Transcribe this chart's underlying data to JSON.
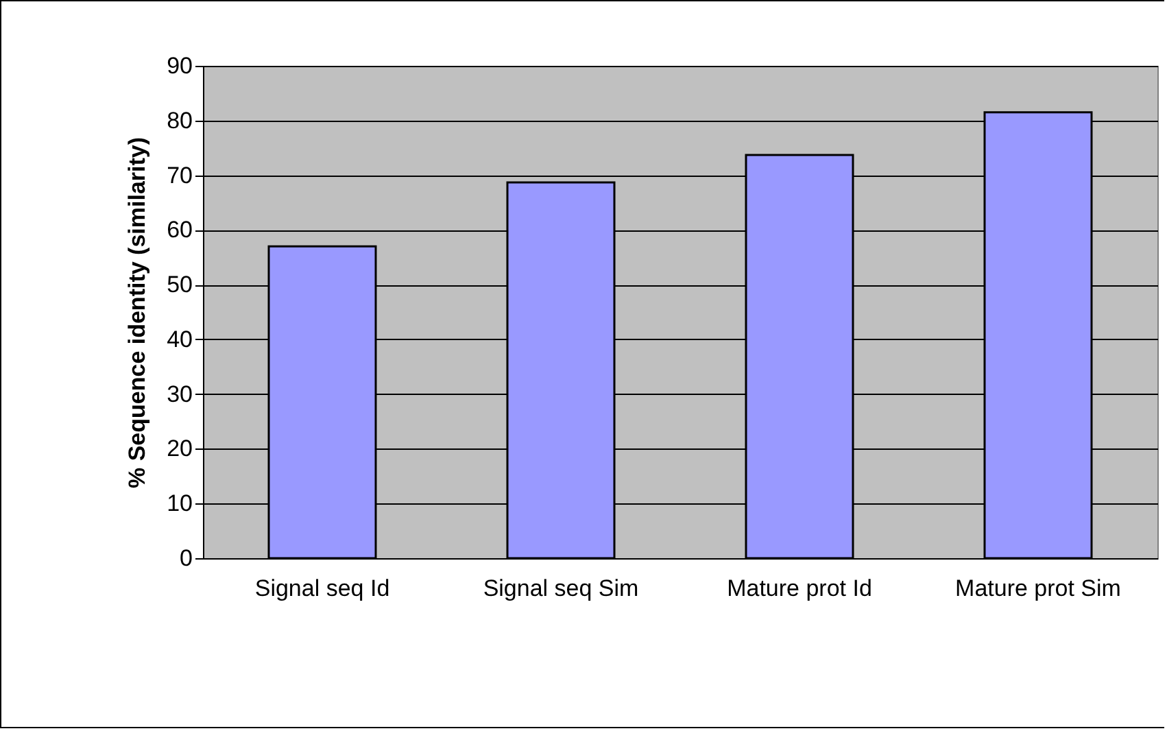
{
  "chart_data": {
    "type": "bar",
    "ylabel": "% Sequence identity (similarity)",
    "categories": [
      "Signal seq Id",
      "Signal seq Sim",
      "Mature prot Id",
      "Mature prot Sim"
    ],
    "values": [
      57,
      68.7,
      73.7,
      81.5
    ],
    "color": "#9999ff",
    "ylim": [
      0,
      90
    ],
    "yticks": [
      0,
      10,
      20,
      30,
      40,
      50,
      60,
      70,
      80,
      90
    ],
    "grid": true
  }
}
